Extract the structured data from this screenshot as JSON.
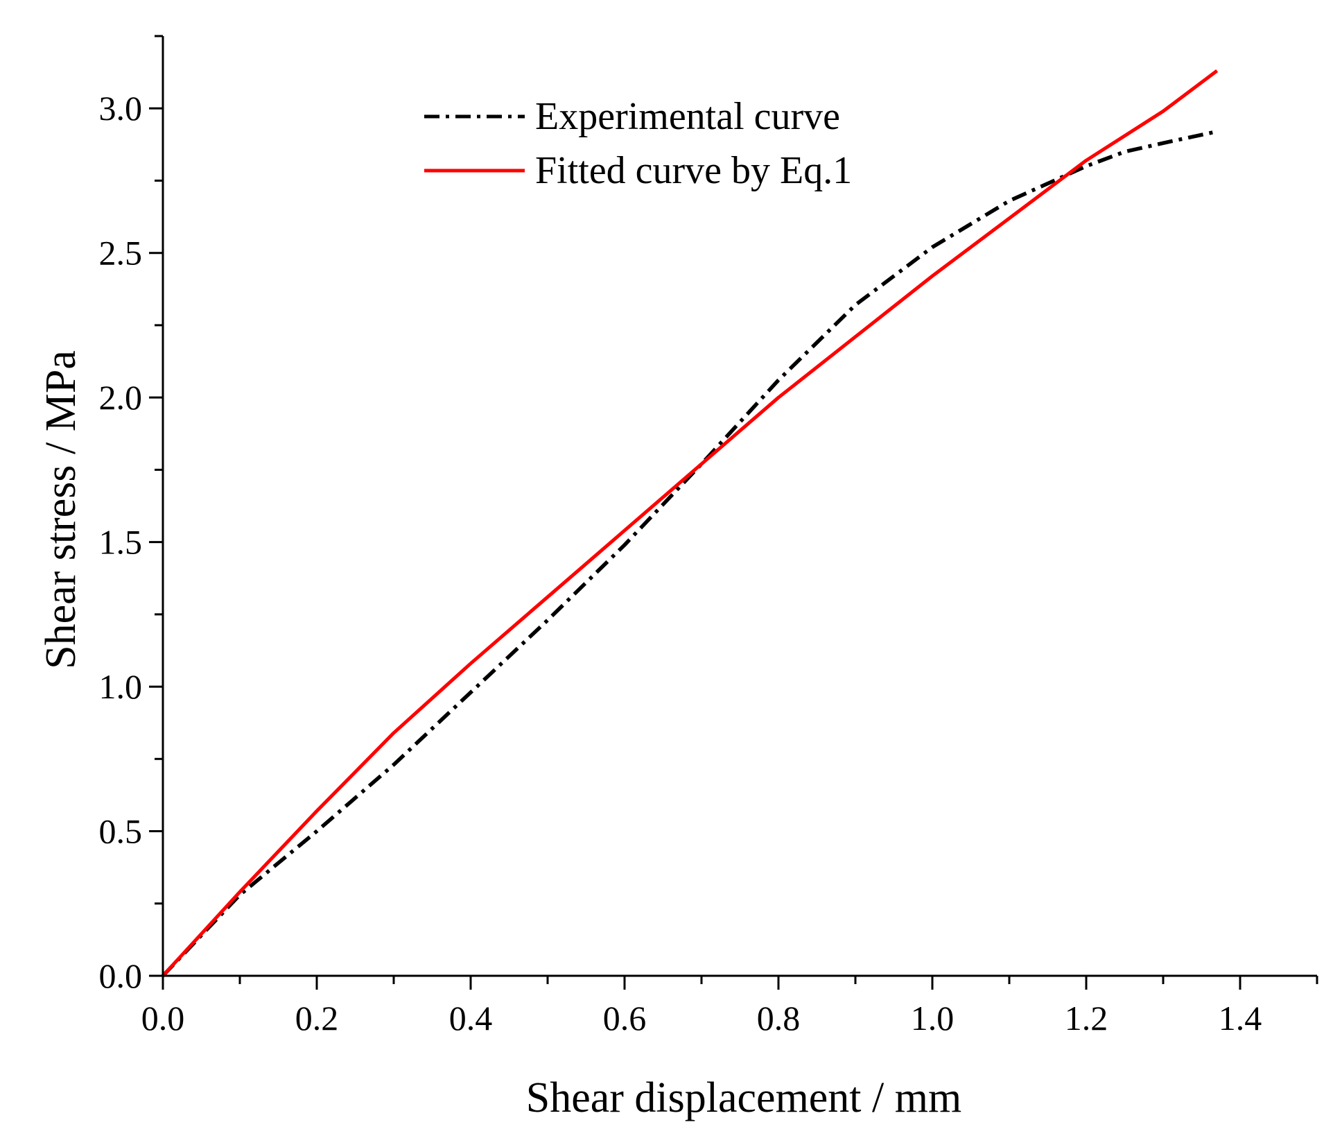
{
  "chart_data": {
    "type": "line",
    "title": "",
    "xlabel": "Shear displacement / mm",
    "ylabel": "Shear stress / MPa",
    "xlim": [
      0,
      1.5
    ],
    "ylim": [
      0,
      3.25
    ],
    "x_ticks": [
      0.0,
      0.2,
      0.4,
      0.6,
      0.8,
      1.0,
      1.2,
      1.4
    ],
    "x_tick_labels": [
      "0.0",
      "0.2",
      "0.4",
      "0.6",
      "0.8",
      "1.0",
      "1.2",
      "1.4"
    ],
    "y_ticks": [
      0.0,
      0.5,
      1.0,
      1.5,
      2.0,
      2.5,
      3.0
    ],
    "y_tick_labels": [
      "0.0",
      "0.5",
      "1.0",
      "1.5",
      "2.0",
      "2.5",
      "3.0"
    ],
    "x_minor_step": 0.1,
    "y_minor_step": 0.25,
    "grid": false,
    "legend_position": "top-center",
    "series": [
      {
        "name": "Experimental curve",
        "color": "#000000",
        "style": "dash-dot",
        "x": [
          0.0,
          0.05,
          0.1,
          0.2,
          0.3,
          0.4,
          0.5,
          0.6,
          0.7,
          0.8,
          0.9,
          0.97,
          1.0,
          1.05,
          1.1,
          1.15,
          1.2,
          1.25,
          1.3,
          1.37
        ],
        "y": [
          0.0,
          0.14,
          0.28,
          0.5,
          0.73,
          0.98,
          1.23,
          1.49,
          1.77,
          2.06,
          2.32,
          2.46,
          2.52,
          2.6,
          2.68,
          2.74,
          2.8,
          2.85,
          2.88,
          2.92
        ]
      },
      {
        "name": "Fitted curve by Eq.1",
        "color": "#ff0000",
        "style": "solid",
        "x": [
          0.0,
          0.1,
          0.2,
          0.3,
          0.4,
          0.5,
          0.6,
          0.7,
          0.8,
          0.9,
          1.0,
          1.1,
          1.2,
          1.3,
          1.37
        ],
        "y": [
          0.0,
          0.29,
          0.57,
          0.84,
          1.08,
          1.31,
          1.54,
          1.77,
          2.0,
          2.21,
          2.42,
          2.62,
          2.82,
          2.99,
          3.13
        ]
      }
    ]
  }
}
